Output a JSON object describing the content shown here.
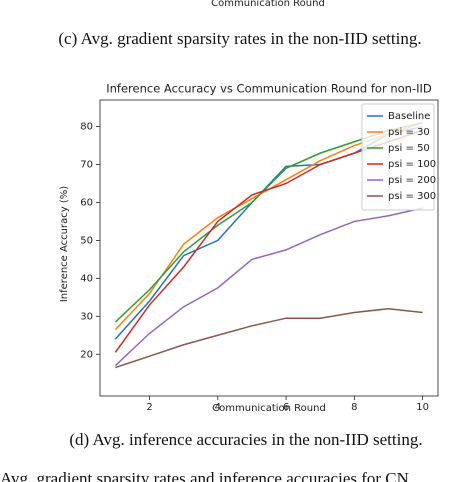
{
  "header_fragment": "Communication Round",
  "caption_c": "(c) Avg. gradient sparsity rates in the non-IID setting.",
  "chart_data": {
    "type": "line",
    "title": "Inference Accuracy vs Communication Round for non-IID",
    "x_label": "Communication Round",
    "y_label": "Inference Accuracy (%)",
    "x": [
      1,
      2,
      3,
      4,
      5,
      6,
      7,
      8,
      9,
      10
    ],
    "series": [
      {
        "name": "Baseline",
        "color": "#1f77b4",
        "values": [
          24,
          34,
          46,
          50,
          60,
          69.5,
          70,
          73,
          78,
          80
        ]
      },
      {
        "name": "psi = 30",
        "color": "#ff7f0e",
        "values": [
          26.5,
          36,
          49,
          56,
          61,
          66,
          71,
          75,
          78,
          81
        ]
      },
      {
        "name": "psi = 50",
        "color": "#2ca02c",
        "values": [
          28.5,
          37,
          47,
          54,
          60,
          69,
          73,
          76,
          79,
          81
        ]
      },
      {
        "name": "psi = 100",
        "color": "#d62728",
        "values": [
          20.5,
          33,
          43,
          55,
          62,
          65,
          70,
          73,
          76,
          79
        ]
      },
      {
        "name": "psi = 200",
        "color": "#9467bd",
        "values": [
          17,
          25.5,
          32.5,
          37.5,
          45,
          47.5,
          51.5,
          55,
          56.5,
          58.5
        ]
      },
      {
        "name": "psi = 300",
        "color": "#8c564b",
        "values": [
          16.5,
          19.5,
          22.5,
          25,
          27.5,
          29.5,
          29.5,
          31,
          32,
          31
        ]
      }
    ],
    "xlim": [
      0.55,
      10.45
    ],
    "xticks": [
      2,
      4,
      6,
      8,
      10
    ],
    "ylim": [
      9,
      87
    ],
    "yticks": [
      20,
      30,
      40,
      50,
      60,
      70,
      80
    ],
    "legend": "upper right"
  },
  "caption_d": "(d) Avg. inference accuracies in the non-IID setting.",
  "footer_fragment": "Avg. gradient sparsity rates and inference accuracies for CN"
}
